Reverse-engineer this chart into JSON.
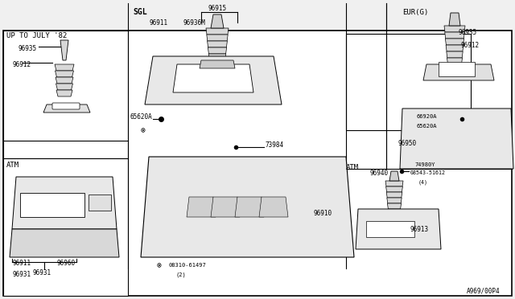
{
  "bg_color": "#f0f0f0",
  "diagram_bg": "#ffffff",
  "border_color": "#000000",
  "line_color": "#000000",
  "text_color": "#000000",
  "title": "",
  "footer": "A969/00P4",
  "sections": {
    "top_left_label": "UP TO JULY '82",
    "mid_left_label": "ATM",
    "center_label": "SGL",
    "top_center_box_label": "96940",
    "atm_eur_label": "ATM  EUR(G)"
  },
  "part_numbers": {
    "96935_tl": "96935",
    "96912_tl": "96912",
    "96915": "96915",
    "96911_sgl": "96911",
    "96936M": "96936M",
    "65620A_sgl": "65620A",
    "73984": "73984",
    "96910": "96910",
    "08310_61497": "08310-61497",
    "2": "(2)",
    "96940": "96940",
    "08543_51612": "08543-51612",
    "4": "(4)",
    "96913": "96913",
    "96911_atm": "96911",
    "96960": "96960",
    "96931": "96931",
    "96935_eur": "96935",
    "96912_eur": "96912",
    "66920A": "66920A",
    "65620A_eur": "65620A",
    "96950": "96950",
    "74980Y": "74980Y"
  },
  "figsize": [
    6.4,
    3.72
  ],
  "dpi": 100
}
